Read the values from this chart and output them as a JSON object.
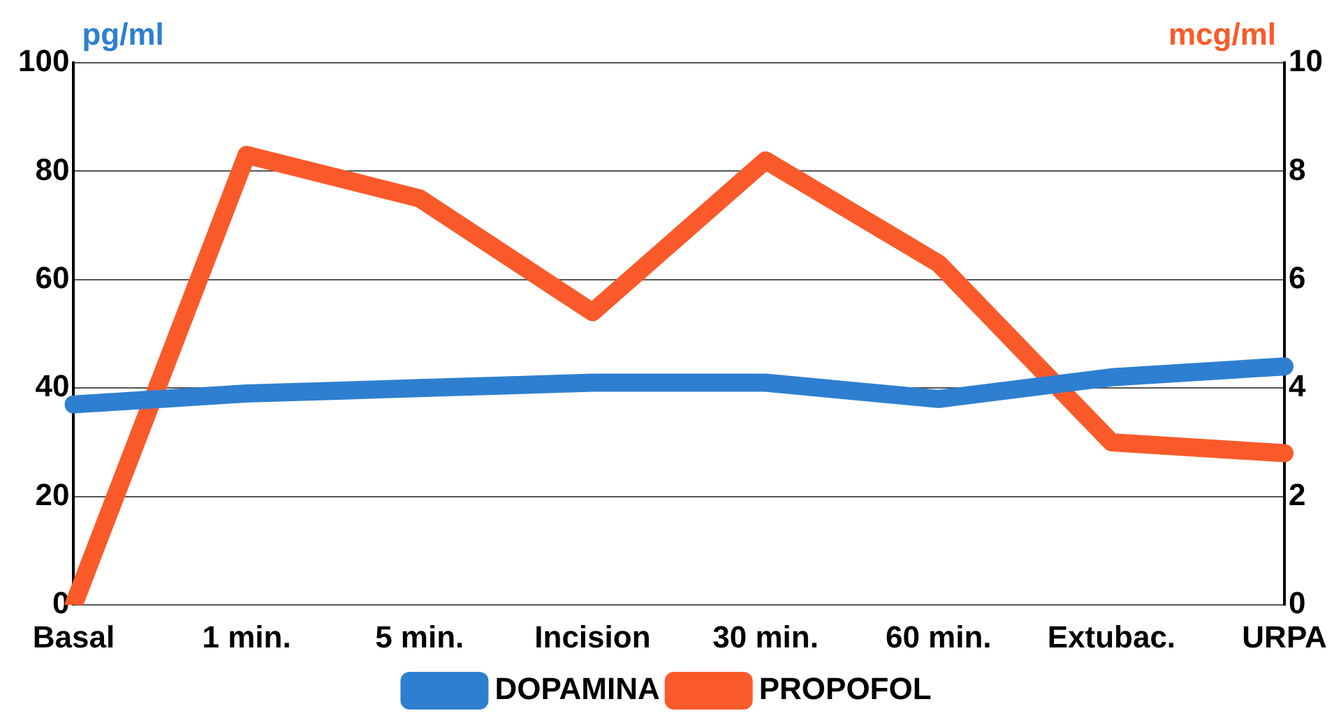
{
  "chart_data": {
    "type": "line",
    "ylabel": "pg/ml",
    "y2label": "mcg/ml",
    "categories": [
      "Basal",
      "1 min.",
      "5 min.",
      "Incision",
      "30 min.",
      "60 min.",
      "Extubac.",
      "URPA"
    ],
    "series": [
      {
        "name": "DOPAMINA",
        "color": "#2f7fd0",
        "values": [
          37,
          39,
          40,
          41,
          41,
          38,
          42,
          44
        ]
      },
      {
        "name": "PROPOFOL",
        "color": "#fa5a2a",
        "axis": "y2",
        "values": [
          0,
          8.3,
          7.5,
          5.4,
          8.2,
          6.3,
          3.0,
          2.8
        ]
      }
    ],
    "ylim": [
      0,
      100
    ],
    "yticks": [
      0,
      20,
      40,
      60,
      80,
      100
    ],
    "y2lim": [
      0,
      10
    ],
    "y2ticks": [
      0,
      2,
      4,
      6,
      8,
      10
    ],
    "grid": "y",
    "line_style": "solid",
    "marker": "none",
    "legend": "bottom"
  }
}
